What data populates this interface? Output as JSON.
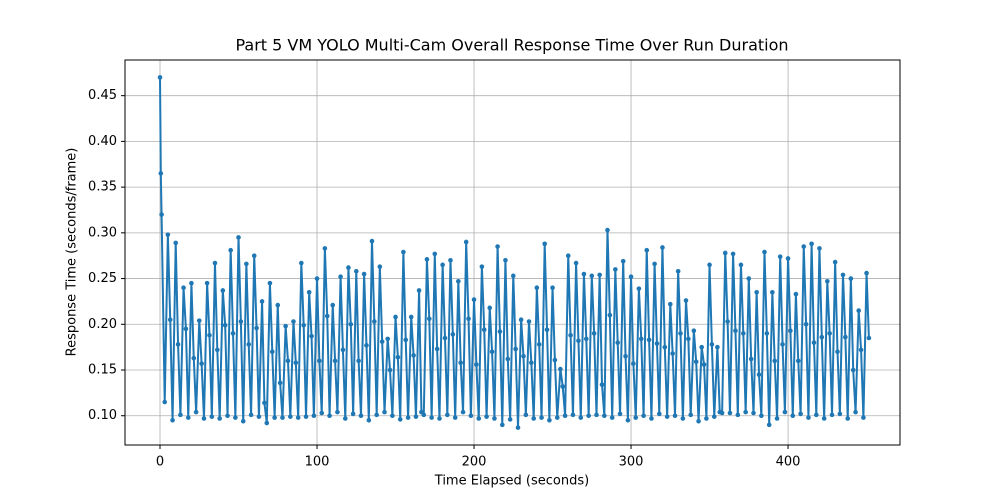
{
  "chart_data": {
    "type": "line",
    "title": "Part 5 VM YOLO Multi-Cam Overall Response Time Over Run Duration",
    "xlabel": "Time Elapsed (seconds)",
    "ylabel": "Response Time (seconds/frame)",
    "xlim": [
      -22.3,
      471.3
    ],
    "ylim": [
      0.068,
      0.489
    ],
    "xticks": [
      0,
      100,
      200,
      300,
      400
    ],
    "yticks": [
      {
        "value": 0.1,
        "label": "0.10"
      },
      0.15,
      {
        "value": 0.2,
        "label": "0.20"
      },
      0.25,
      {
        "value": 0.3,
        "label": "0.30"
      },
      0.35,
      {
        "value": 0.4,
        "label": "0.40"
      },
      0.45
    ],
    "grid": true,
    "x": [
      0,
      0.5,
      1,
      3,
      5,
      6.5,
      8,
      10,
      11.5,
      13,
      15,
      16.5,
      18,
      20,
      21.5,
      23,
      25,
      26.5,
      28,
      30,
      31.5,
      33,
      35,
      36.5,
      38,
      40,
      41.5,
      43,
      45,
      46.5,
      48,
      50,
      51.5,
      53,
      55,
      56.5,
      58,
      60,
      61.5,
      63,
      65,
      66.5,
      68,
      70,
      71.5,
      73,
      75,
      76.5,
      78,
      80,
      81.5,
      83,
      85,
      86.5,
      88,
      90,
      91.5,
      93,
      95,
      96.5,
      98,
      100,
      101.5,
      103,
      105,
      106.5,
      108,
      110,
      111.5,
      113,
      115,
      116.5,
      118,
      120,
      121.5,
      123,
      125,
      126.5,
      128,
      130,
      131.5,
      133,
      135,
      136.5,
      138,
      140,
      141.5,
      143,
      145,
      146.5,
      148,
      150,
      151.5,
      153,
      155,
      156.5,
      158,
      160,
      161.5,
      163,
      165,
      166.5,
      168,
      170,
      171.5,
      173,
      175,
      176.5,
      178,
      180,
      181.5,
      183,
      185,
      186.5,
      188,
      190,
      191.5,
      193,
      195,
      196.5,
      198,
      200,
      201.5,
      203,
      205,
      206.5,
      208,
      210,
      211.5,
      213,
      215,
      216.5,
      218,
      220,
      221.5,
      223,
      225,
      226.5,
      228,
      230,
      231.5,
      233,
      235,
      236.5,
      238,
      240,
      241.5,
      243,
      245,
      246.5,
      248,
      250,
      251.5,
      253,
      255,
      256.5,
      258,
      260,
      261.5,
      263,
      265,
      266.5,
      268,
      270,
      271.5,
      273,
      275,
      276.5,
      278,
      280,
      281.5,
      283,
      285,
      286.5,
      288,
      290,
      291.5,
      293,
      295,
      296.5,
      298,
      300,
      301.5,
      303,
      305,
      306.5,
      308,
      310,
      311.5,
      313,
      315,
      316.5,
      318,
      320,
      321.5,
      323,
      325,
      326.5,
      328,
      330,
      331.5,
      333,
      335,
      336.5,
      338,
      340,
      341.5,
      343,
      345,
      346.5,
      348,
      350,
      351.5,
      353,
      355,
      356.5,
      358,
      360,
      361.5,
      363,
      365,
      366.5,
      368,
      370,
      371.5,
      373,
      375,
      376.5,
      378,
      380,
      381.5,
      383,
      385,
      386.5,
      388,
      390,
      391.5,
      393,
      395,
      396.5,
      398,
      400,
      401.5,
      403,
      405,
      406.5,
      408,
      410,
      411.5,
      413,
      415,
      416.5,
      418,
      420,
      421.5,
      423,
      425,
      426.5,
      428,
      430,
      431.5,
      433,
      435,
      436.5,
      438,
      440,
      441.5,
      443,
      445,
      446.5,
      448,
      450,
      451.5
    ],
    "series": [
      {
        "color": "#1f77b4",
        "values": [
          0.47,
          0.365,
          0.32,
          0.115,
          0.298,
          0.205,
          0.095,
          0.289,
          0.178,
          0.101,
          0.24,
          0.195,
          0.098,
          0.245,
          0.163,
          0.104,
          0.204,
          0.157,
          0.097,
          0.245,
          0.188,
          0.099,
          0.267,
          0.172,
          0.097,
          0.237,
          0.199,
          0.1,
          0.281,
          0.19,
          0.098,
          0.295,
          0.203,
          0.094,
          0.266,
          0.178,
          0.101,
          0.275,
          0.196,
          0.099,
          0.225,
          0.114,
          0.092,
          0.245,
          0.17,
          0.098,
          0.221,
          0.136,
          0.098,
          0.198,
          0.16,
          0.099,
          0.203,
          0.158,
          0.098,
          0.267,
          0.199,
          0.099,
          0.235,
          0.187,
          0.1,
          0.25,
          0.16,
          0.103,
          0.283,
          0.209,
          0.1,
          0.221,
          0.16,
          0.104,
          0.252,
          0.172,
          0.097,
          0.262,
          0.2,
          0.102,
          0.258,
          0.16,
          0.1,
          0.255,
          0.177,
          0.095,
          0.291,
          0.203,
          0.101,
          0.263,
          0.181,
          0.104,
          0.184,
          0.15,
          0.1,
          0.208,
          0.164,
          0.096,
          0.279,
          0.183,
          0.098,
          0.208,
          0.166,
          0.099,
          0.237,
          0.104,
          0.101,
          0.271,
          0.206,
          0.098,
          0.277,
          0.173,
          0.097,
          0.265,
          0.185,
          0.101,
          0.27,
          0.189,
          0.098,
          0.247,
          0.158,
          0.104,
          0.29,
          0.206,
          0.1,
          0.227,
          0.156,
          0.097,
          0.263,
          0.194,
          0.099,
          0.218,
          0.17,
          0.097,
          0.285,
          0.192,
          0.09,
          0.27,
          0.162,
          0.096,
          0.253,
          0.173,
          0.087,
          0.205,
          0.165,
          0.101,
          0.203,
          0.158,
          0.097,
          0.24,
          0.178,
          0.098,
          0.288,
          0.194,
          0.095,
          0.24,
          0.161,
          0.098,
          0.151,
          0.132,
          0.1,
          0.275,
          0.188,
          0.101,
          0.267,
          0.182,
          0.098,
          0.255,
          0.184,
          0.1,
          0.253,
          0.19,
          0.101,
          0.254,
          0.134,
          0.1,
          0.303,
          0.21,
          0.098,
          0.26,
          0.18,
          0.102,
          0.269,
          0.165,
          0.095,
          0.252,
          0.157,
          0.098,
          0.239,
          0.184,
          0.1,
          0.281,
          0.183,
          0.097,
          0.266,
          0.179,
          0.102,
          0.284,
          0.175,
          0.099,
          0.222,
          0.168,
          0.1,
          0.258,
          0.19,
          0.097,
          0.226,
          0.184,
          0.101,
          0.193,
          0.159,
          0.094,
          0.175,
          0.156,
          0.097,
          0.265,
          0.178,
          0.099,
          0.175,
          0.104,
          0.103,
          0.278,
          0.203,
          0.103,
          0.277,
          0.193,
          0.101,
          0.265,
          0.19,
          0.104,
          0.25,
          0.162,
          0.103,
          0.235,
          0.145,
          0.1,
          0.279,
          0.19,
          0.09,
          0.235,
          0.16,
          0.097,
          0.274,
          0.178,
          0.104,
          0.272,
          0.193,
          0.1,
          0.233,
          0.16,
          0.102,
          0.285,
          0.2,
          0.098,
          0.288,
          0.18,
          0.101,
          0.283,
          0.186,
          0.097,
          0.247,
          0.19,
          0.101,
          0.268,
          0.17,
          0.102,
          0.254,
          0.186,
          0.097,
          0.25,
          0.15,
          0.104,
          0.215,
          0.172,
          0.098,
          0.256,
          0.185
        ]
      }
    ]
  }
}
